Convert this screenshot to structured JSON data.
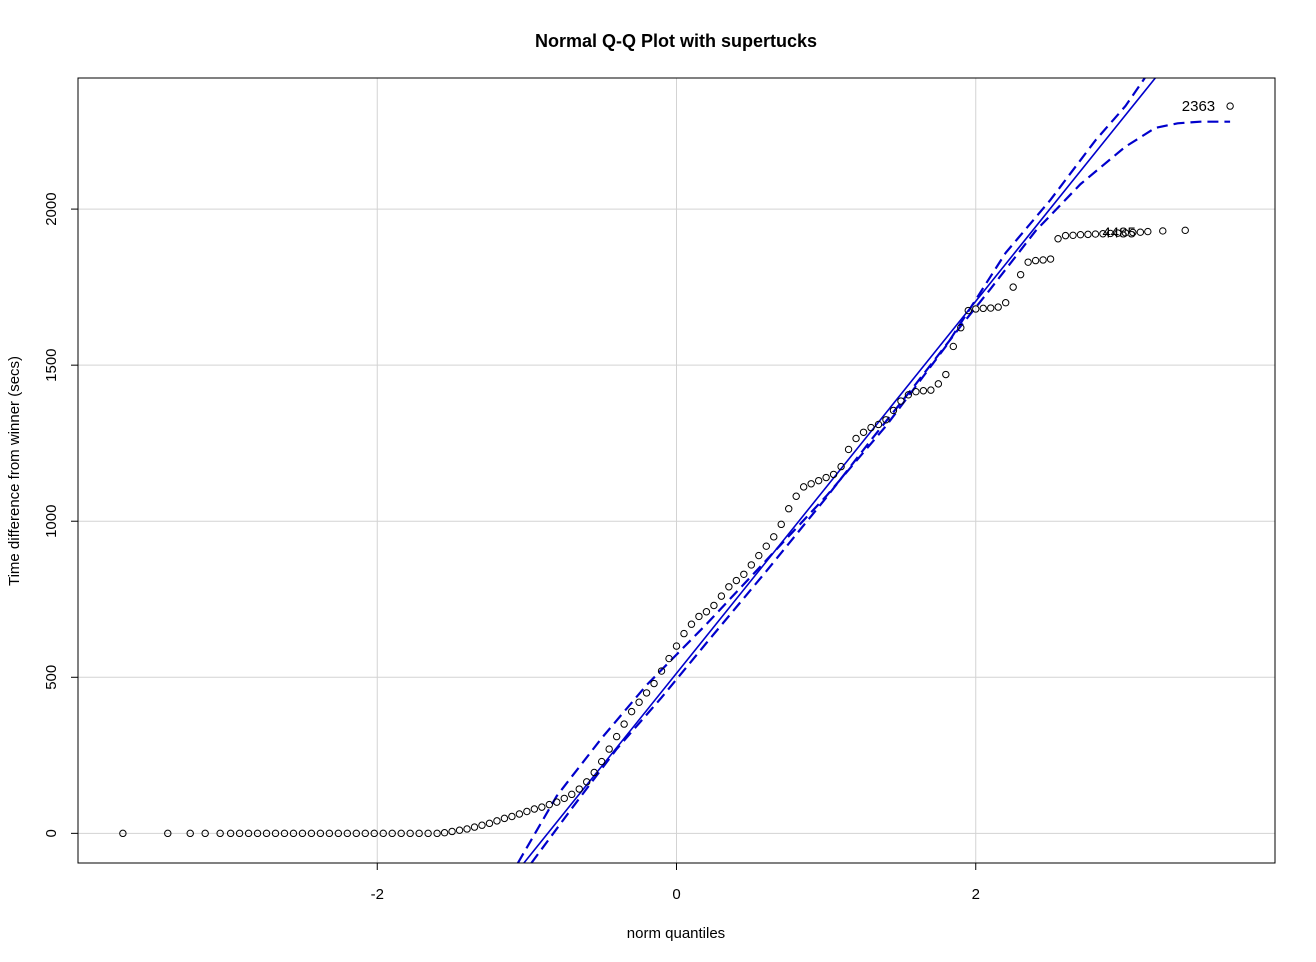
{
  "chart_data": {
    "type": "scatter",
    "title": "Normal Q-Q Plot with supertucks",
    "xlabel": "norm quantiles",
    "ylabel": "Time difference from winner (secs)",
    "xlim": [
      -4.0,
      4.0
    ],
    "ylim": [
      -95,
      2420
    ],
    "xticks": [
      -2,
      0,
      2
    ],
    "yticks": [
      0,
      500,
      1000,
      1500,
      2000
    ],
    "grid": true,
    "colors": {
      "points": "#000000",
      "line": "#0000cc",
      "grid": "#d3d3d3"
    },
    "series": [
      {
        "name": "sample quantiles",
        "kind": "points",
        "x": [
          -3.7,
          -3.4,
          -3.25,
          -3.15,
          -3.05,
          -2.98,
          -2.92,
          -2.86,
          -2.8,
          -2.74,
          -2.68,
          -2.62,
          -2.56,
          -2.5,
          -2.44,
          -2.38,
          -2.32,
          -2.26,
          -2.2,
          -2.14,
          -2.08,
          -2.02,
          -1.96,
          -1.9,
          -1.84,
          -1.78,
          -1.72,
          -1.66,
          -1.6,
          -1.55,
          -1.5,
          -1.45,
          -1.4,
          -1.35,
          -1.3,
          -1.25,
          -1.2,
          -1.15,
          -1.1,
          -1.05,
          -1.0,
          -0.95,
          -0.9,
          -0.85,
          -0.8,
          -0.75,
          -0.7,
          -0.65,
          -0.6,
          -0.55,
          -0.5,
          -0.45,
          -0.4,
          -0.35,
          -0.3,
          -0.25,
          -0.2,
          -0.15,
          -0.1,
          -0.05,
          0.0,
          0.05,
          0.1,
          0.15,
          0.2,
          0.25,
          0.3,
          0.35,
          0.4,
          0.45,
          0.5,
          0.55,
          0.6,
          0.65,
          0.7,
          0.75,
          0.8,
          0.85,
          0.9,
          0.95,
          1.0,
          1.05,
          1.1,
          1.15,
          1.2,
          1.25,
          1.3,
          1.35,
          1.4,
          1.45,
          1.5,
          1.55,
          1.6,
          1.65,
          1.7,
          1.75,
          1.8,
          1.85,
          1.9,
          1.95,
          2.0,
          2.05,
          2.1,
          2.15,
          2.2,
          2.25,
          2.3,
          2.35,
          2.4,
          2.45,
          2.5,
          2.55,
          2.6,
          2.65,
          2.7,
          2.75,
          2.8,
          2.85,
          2.9,
          2.95,
          3.0,
          3.05,
          3.1,
          3.15,
          3.25,
          3.4,
          3.7
        ],
        "y": [
          0,
          0,
          0,
          0,
          0,
          0,
          0,
          0,
          0,
          0,
          0,
          0,
          0,
          0,
          0,
          0,
          0,
          0,
          0,
          0,
          0,
          0,
          0,
          0,
          0,
          0,
          0,
          0,
          0,
          2,
          6,
          10,
          14,
          20,
          26,
          32,
          40,
          48,
          54,
          62,
          70,
          78,
          84,
          92,
          100,
          112,
          125,
          142,
          165,
          195,
          230,
          270,
          310,
          350,
          390,
          420,
          450,
          480,
          520,
          560,
          600,
          640,
          670,
          695,
          710,
          730,
          760,
          790,
          810,
          830,
          860,
          890,
          920,
          950,
          990,
          1040,
          1080,
          1110,
          1120,
          1130,
          1140,
          1150,
          1175,
          1230,
          1265,
          1285,
          1300,
          1310,
          1325,
          1355,
          1385,
          1405,
          1415,
          1418,
          1420,
          1440,
          1470,
          1560,
          1620,
          1675,
          1680,
          1682,
          1683,
          1686,
          1700,
          1750,
          1790,
          1830,
          1835,
          1837,
          1840,
          1905,
          1915,
          1916,
          1918,
          1919,
          1920,
          1921,
          1922,
          1923,
          1924,
          1925,
          1926,
          1928,
          1930,
          1932,
          2330
        ]
      },
      {
        "name": "reference line",
        "kind": "line",
        "x": [
          -1.02,
          3.2
        ],
        "y": [
          -95,
          2420
        ]
      },
      {
        "name": "upper envelope",
        "kind": "dashed",
        "x": [
          -1.06,
          -0.8,
          -0.5,
          -0.2,
          0.2,
          0.6,
          1.0,
          1.4,
          1.8,
          2.0,
          2.2,
          2.5,
          2.8,
          3.0,
          3.13
        ],
        "y": [
          -95,
          120,
          305,
          475,
          670,
          875,
          1080,
          1305,
          1560,
          1710,
          1860,
          2030,
          2220,
          2330,
          2420
        ]
      },
      {
        "name": "lower envelope",
        "kind": "dashed",
        "x": [
          -0.97,
          -0.7,
          -0.4,
          -0.1,
          0.2,
          0.6,
          1.0,
          1.3,
          1.6,
          1.9,
          2.1,
          2.4,
          2.7,
          3.0,
          3.2,
          3.35,
          3.5,
          3.7
        ],
        "y": [
          -95,
          80,
          270,
          435,
          610,
          840,
          1075,
          1260,
          1440,
          1625,
          1745,
          1930,
          2080,
          2200,
          2260,
          2275,
          2280,
          2280
        ]
      }
    ],
    "annotations": [
      {
        "text": "2363",
        "x": 3.6,
        "y": 2330,
        "anchor": "end"
      },
      {
        "text": "4485",
        "x": 3.07,
        "y": 1925,
        "anchor": "end"
      }
    ]
  }
}
